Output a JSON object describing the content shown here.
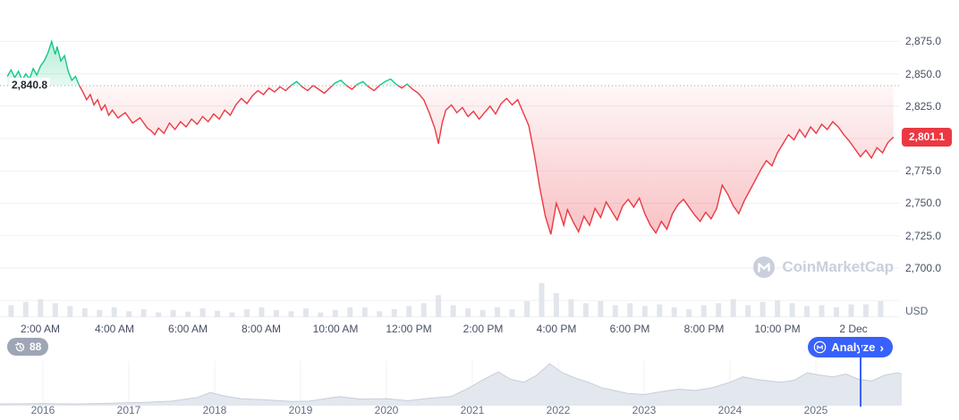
{
  "watermark": {
    "text": "CoinMarketCap"
  },
  "footer": {
    "history_badge": {
      "count": "88"
    },
    "analyze_button": {
      "label": "Analyze",
      "chevron": "›"
    }
  },
  "chart_data": {
    "type": "line",
    "currency": "USD",
    "xlim": [
      0.9,
      25.3
    ],
    "ylim": [
      2662,
      2907
    ],
    "baseline": {
      "value": 2840.8,
      "label": "2,840.8"
    },
    "last": {
      "value": 2801.1,
      "label": "2,801.1"
    },
    "colors": {
      "up": "#16c784",
      "down": "#ea3943",
      "accent": "#3861fb"
    },
    "yticks": [
      {
        "v": 2875,
        "label": "2,875.0"
      },
      {
        "v": 2850,
        "label": "2,850.0"
      },
      {
        "v": 2825,
        "label": "2,825.0"
      },
      {
        "v": 2800,
        "label": null
      },
      {
        "v": 2775,
        "label": "2,775.0"
      },
      {
        "v": 2750,
        "label": "2,750.0"
      },
      {
        "v": 2725,
        "label": "2,725.0"
      },
      {
        "v": 2700,
        "label": "2,700.0"
      },
      {
        "v": 2675,
        "label": null
      }
    ],
    "xticks": [
      {
        "t": 2,
        "label": "2:00 AM"
      },
      {
        "t": 4,
        "label": "4:00 AM"
      },
      {
        "t": 6,
        "label": "6:00 AM"
      },
      {
        "t": 8,
        "label": "8:00 AM"
      },
      {
        "t": 10,
        "label": "10:00 AM"
      },
      {
        "t": 12,
        "label": "12:00 PM"
      },
      {
        "t": 14,
        "label": "2:00 PM"
      },
      {
        "t": 16,
        "label": "4:00 PM"
      },
      {
        "t": 18,
        "label": "6:00 PM"
      },
      {
        "t": 20,
        "label": "8:00 PM"
      },
      {
        "t": 22,
        "label": "10:00 PM"
      },
      {
        "t": 24.05,
        "label": "2 Dec"
      }
    ],
    "points": [
      [
        1.1,
        2848
      ],
      [
        1.2,
        2853
      ],
      [
        1.3,
        2847
      ],
      [
        1.4,
        2852
      ],
      [
        1.5,
        2845
      ],
      [
        1.6,
        2850
      ],
      [
        1.7,
        2846
      ],
      [
        1.8,
        2854
      ],
      [
        1.9,
        2849
      ],
      [
        2.0,
        2856
      ],
      [
        2.1,
        2860
      ],
      [
        2.2,
        2866
      ],
      [
        2.3,
        2875
      ],
      [
        2.4,
        2865
      ],
      [
        2.45,
        2871
      ],
      [
        2.55,
        2860
      ],
      [
        2.65,
        2864
      ],
      [
        2.75,
        2852
      ],
      [
        2.85,
        2845
      ],
      [
        2.95,
        2848
      ],
      [
        3.05,
        2841
      ],
      [
        3.15,
        2836
      ],
      [
        3.25,
        2830
      ],
      [
        3.35,
        2834
      ],
      [
        3.45,
        2826
      ],
      [
        3.55,
        2830
      ],
      [
        3.65,
        2822
      ],
      [
        3.75,
        2826
      ],
      [
        3.85,
        2818
      ],
      [
        3.95,
        2822
      ],
      [
        4.1,
        2816
      ],
      [
        4.3,
        2820
      ],
      [
        4.5,
        2812
      ],
      [
        4.7,
        2816
      ],
      [
        4.9,
        2808
      ],
      [
        5.0,
        2806
      ],
      [
        5.1,
        2803
      ],
      [
        5.2,
        2808
      ],
      [
        5.35,
        2804
      ],
      [
        5.5,
        2812
      ],
      [
        5.65,
        2807
      ],
      [
        5.8,
        2813
      ],
      [
        5.95,
        2809
      ],
      [
        6.1,
        2815
      ],
      [
        6.25,
        2811
      ],
      [
        6.4,
        2817
      ],
      [
        6.55,
        2813
      ],
      [
        6.7,
        2819
      ],
      [
        6.85,
        2815
      ],
      [
        7.0,
        2822
      ],
      [
        7.15,
        2818
      ],
      [
        7.3,
        2826
      ],
      [
        7.45,
        2831
      ],
      [
        7.6,
        2827
      ],
      [
        7.75,
        2833
      ],
      [
        7.9,
        2837
      ],
      [
        8.05,
        2834
      ],
      [
        8.2,
        2839
      ],
      [
        8.35,
        2836
      ],
      [
        8.5,
        2840
      ],
      [
        8.65,
        2837
      ],
      [
        8.8,
        2841
      ],
      [
        8.95,
        2844
      ],
      [
        9.1,
        2840
      ],
      [
        9.25,
        2837
      ],
      [
        9.4,
        2841
      ],
      [
        9.55,
        2838
      ],
      [
        9.7,
        2835
      ],
      [
        9.85,
        2839
      ],
      [
        10.0,
        2843
      ],
      [
        10.15,
        2845
      ],
      [
        10.3,
        2841
      ],
      [
        10.45,
        2838
      ],
      [
        10.6,
        2842
      ],
      [
        10.75,
        2844
      ],
      [
        10.9,
        2840
      ],
      [
        11.05,
        2837
      ],
      [
        11.2,
        2841
      ],
      [
        11.35,
        2844
      ],
      [
        11.5,
        2846
      ],
      [
        11.65,
        2842
      ],
      [
        11.8,
        2839
      ],
      [
        11.95,
        2842
      ],
      [
        12.1,
        2838
      ],
      [
        12.25,
        2835
      ],
      [
        12.4,
        2830
      ],
      [
        12.55,
        2820
      ],
      [
        12.7,
        2808
      ],
      [
        12.8,
        2796
      ],
      [
        12.9,
        2812
      ],
      [
        13.0,
        2822
      ],
      [
        13.15,
        2826
      ],
      [
        13.3,
        2820
      ],
      [
        13.45,
        2824
      ],
      [
        13.6,
        2817
      ],
      [
        13.75,
        2821
      ],
      [
        13.9,
        2815
      ],
      [
        14.05,
        2820
      ],
      [
        14.2,
        2825
      ],
      [
        14.35,
        2819
      ],
      [
        14.5,
        2827
      ],
      [
        14.65,
        2831
      ],
      [
        14.8,
        2826
      ],
      [
        14.95,
        2830
      ],
      [
        15.1,
        2820
      ],
      [
        15.25,
        2810
      ],
      [
        15.4,
        2788
      ],
      [
        15.55,
        2762
      ],
      [
        15.7,
        2740
      ],
      [
        15.85,
        2726
      ],
      [
        16.0,
        2750
      ],
      [
        16.1,
        2742
      ],
      [
        16.2,
        2733
      ],
      [
        16.3,
        2745
      ],
      [
        16.45,
        2736
      ],
      [
        16.6,
        2728
      ],
      [
        16.75,
        2740
      ],
      [
        16.9,
        2733
      ],
      [
        17.05,
        2746
      ],
      [
        17.2,
        2739
      ],
      [
        17.35,
        2751
      ],
      [
        17.5,
        2744
      ],
      [
        17.65,
        2737
      ],
      [
        17.8,
        2748
      ],
      [
        17.95,
        2753
      ],
      [
        18.1,
        2747
      ],
      [
        18.25,
        2754
      ],
      [
        18.4,
        2742
      ],
      [
        18.55,
        2733
      ],
      [
        18.7,
        2727
      ],
      [
        18.85,
        2736
      ],
      [
        19.0,
        2730
      ],
      [
        19.15,
        2742
      ],
      [
        19.3,
        2749
      ],
      [
        19.45,
        2753
      ],
      [
        19.6,
        2747
      ],
      [
        19.75,
        2741
      ],
      [
        19.9,
        2736
      ],
      [
        20.05,
        2743
      ],
      [
        20.2,
        2738
      ],
      [
        20.35,
        2746
      ],
      [
        20.5,
        2764
      ],
      [
        20.65,
        2757
      ],
      [
        20.8,
        2748
      ],
      [
        20.95,
        2742
      ],
      [
        21.1,
        2752
      ],
      [
        21.25,
        2760
      ],
      [
        21.4,
        2768
      ],
      [
        21.55,
        2776
      ],
      [
        21.7,
        2783
      ],
      [
        21.85,
        2779
      ],
      [
        22.0,
        2789
      ],
      [
        22.15,
        2796
      ],
      [
        22.3,
        2803
      ],
      [
        22.45,
        2799
      ],
      [
        22.6,
        2807
      ],
      [
        22.75,
        2801
      ],
      [
        22.9,
        2809
      ],
      [
        23.05,
        2804
      ],
      [
        23.2,
        2811
      ],
      [
        23.35,
        2807
      ],
      [
        23.5,
        2813
      ],
      [
        23.65,
        2809
      ],
      [
        23.8,
        2803
      ],
      [
        23.95,
        2798
      ],
      [
        24.1,
        2792
      ],
      [
        24.25,
        2786
      ],
      [
        24.4,
        2791
      ],
      [
        24.55,
        2785
      ],
      [
        24.7,
        2793
      ],
      [
        24.85,
        2789
      ],
      [
        25.0,
        2797
      ],
      [
        25.15,
        2801.1
      ]
    ],
    "volume": [
      [
        1.2,
        30
      ],
      [
        1.6,
        38
      ],
      [
        2.0,
        45
      ],
      [
        2.4,
        35
      ],
      [
        2.8,
        28
      ],
      [
        3.2,
        22
      ],
      [
        3.6,
        18
      ],
      [
        4.0,
        25
      ],
      [
        4.4,
        15
      ],
      [
        4.8,
        20
      ],
      [
        5.2,
        12
      ],
      [
        5.6,
        18
      ],
      [
        6.0,
        14
      ],
      [
        6.4,
        22
      ],
      [
        6.8,
        16
      ],
      [
        7.2,
        12
      ],
      [
        7.6,
        20
      ],
      [
        8.0,
        25
      ],
      [
        8.4,
        18
      ],
      [
        8.8,
        15
      ],
      [
        9.2,
        22
      ],
      [
        9.6,
        12
      ],
      [
        10.0,
        18
      ],
      [
        10.4,
        25
      ],
      [
        10.8,
        25
      ],
      [
        11.2,
        15
      ],
      [
        11.6,
        20
      ],
      [
        12.0,
        28
      ],
      [
        12.4,
        35
      ],
      [
        12.8,
        55
      ],
      [
        13.2,
        30
      ],
      [
        13.6,
        22
      ],
      [
        14.0,
        18
      ],
      [
        14.4,
        25
      ],
      [
        14.8,
        20
      ],
      [
        15.2,
        40
      ],
      [
        15.6,
        85
      ],
      [
        16.0,
        60
      ],
      [
        16.4,
        45
      ],
      [
        16.8,
        35
      ],
      [
        17.2,
        40
      ],
      [
        17.6,
        30
      ],
      [
        18.0,
        35
      ],
      [
        18.4,
        28
      ],
      [
        18.8,
        32
      ],
      [
        19.2,
        25
      ],
      [
        19.6,
        20
      ],
      [
        20.0,
        30
      ],
      [
        20.4,
        35
      ],
      [
        20.8,
        45
      ],
      [
        21.2,
        30
      ],
      [
        21.6,
        38
      ],
      [
        22.0,
        42
      ],
      [
        22.4,
        35
      ],
      [
        22.8,
        28
      ],
      [
        23.2,
        30
      ],
      [
        23.6,
        25
      ],
      [
        24.0,
        32
      ],
      [
        24.4,
        32
      ],
      [
        24.8,
        40
      ]
    ],
    "navigator": {
      "xlim": [
        2015.5,
        2026.0
      ],
      "marker_x": 2025.52,
      "year_ticks": [
        2016,
        2017,
        2018,
        2019,
        2020,
        2021,
        2022,
        2023,
        2024,
        2025
      ],
      "points": [
        [
          2015.5,
          2
        ],
        [
          2016.0,
          3
        ],
        [
          2016.4,
          2
        ],
        [
          2016.8,
          4
        ],
        [
          2017.2,
          6
        ],
        [
          2017.5,
          9
        ],
        [
          2017.8,
          18
        ],
        [
          2017.95,
          30
        ],
        [
          2018.1,
          22
        ],
        [
          2018.3,
          15
        ],
        [
          2018.6,
          12
        ],
        [
          2018.9,
          8
        ],
        [
          2019.1,
          9
        ],
        [
          2019.45,
          20
        ],
        [
          2019.7,
          14
        ],
        [
          2020.0,
          15
        ],
        [
          2020.25,
          10
        ],
        [
          2020.5,
          16
        ],
        [
          2020.75,
          20
        ],
        [
          2020.95,
          40
        ],
        [
          2021.1,
          58
        ],
        [
          2021.3,
          80
        ],
        [
          2021.45,
          62
        ],
        [
          2021.6,
          55
        ],
        [
          2021.75,
          72
        ],
        [
          2021.9,
          100
        ],
        [
          2022.05,
          78
        ],
        [
          2022.2,
          65
        ],
        [
          2022.35,
          55
        ],
        [
          2022.5,
          42
        ],
        [
          2022.65,
          35
        ],
        [
          2022.8,
          28
        ],
        [
          2023.0,
          25
        ],
        [
          2023.2,
          32
        ],
        [
          2023.4,
          38
        ],
        [
          2023.6,
          35
        ],
        [
          2023.8,
          42
        ],
        [
          2024.0,
          55
        ],
        [
          2024.15,
          68
        ],
        [
          2024.3,
          62
        ],
        [
          2024.45,
          58
        ],
        [
          2024.6,
          55
        ],
        [
          2024.75,
          60
        ],
        [
          2024.9,
          78
        ],
        [
          2025.05,
          72
        ],
        [
          2025.2,
          68
        ],
        [
          2025.35,
          75
        ],
        [
          2025.5,
          62
        ],
        [
          2025.65,
          58
        ],
        [
          2025.8,
          72
        ],
        [
          2025.95,
          78
        ],
        [
          2026.0,
          75
        ]
      ]
    }
  }
}
